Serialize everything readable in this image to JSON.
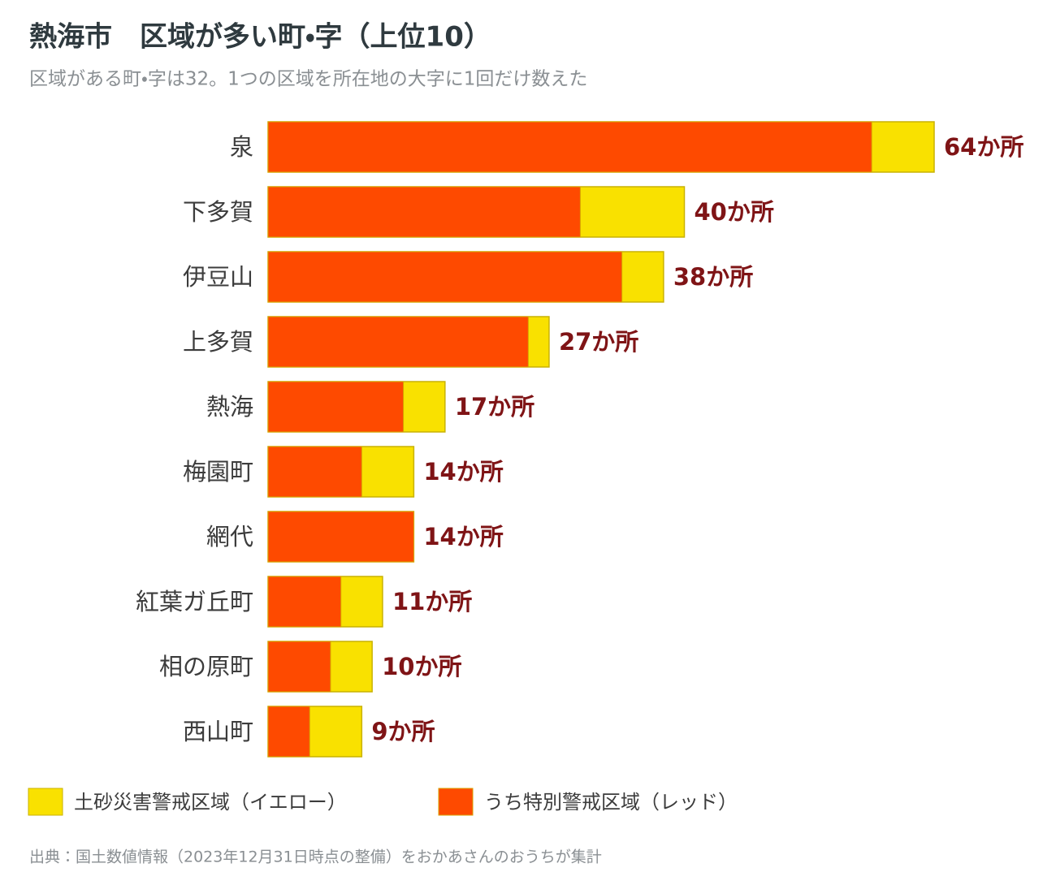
{
  "chart_data": {
    "type": "bar",
    "orientation": "horizontal",
    "title": "熱海市　区域が多い町・字（上位10）",
    "subtitle": "区域がある町・字は32。1つの区域を所在地の大字に1回だけ数えた",
    "categories": [
      "泉",
      "下多賀",
      "伊豆山",
      "上多賀",
      "熱海",
      "梅園町",
      "網代",
      "紅葉ガ丘町",
      "相の原町",
      "西山町"
    ],
    "series": [
      {
        "name": "土砂災害警戒区域（イエロー）",
        "color": "#f9e100",
        "values": [
          64,
          40,
          38,
          27,
          17,
          14,
          14,
          11,
          10,
          9
        ],
        "value_labels": [
          "64か所",
          "40か所",
          "38か所",
          "27か所",
          "17か所",
          "14か所",
          "14か所",
          "11か所",
          "10か所",
          "9か所"
        ]
      },
      {
        "name": "うち特別警戒区域（レッド）",
        "color": "#fe4a00",
        "values": [
          58,
          30,
          34,
          25,
          13,
          9,
          14,
          7,
          6,
          4
        ]
      }
    ],
    "source": "出典：国土数値情報（2023年12月31日時点の整備）をおかあさんのおうちが集計"
  }
}
